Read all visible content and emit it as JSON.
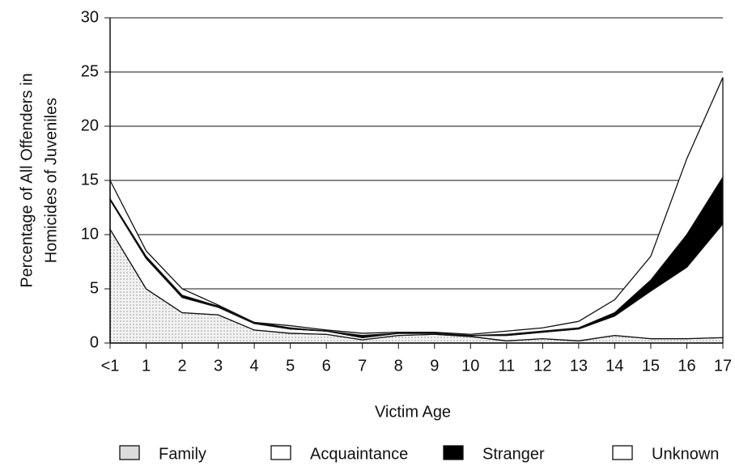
{
  "chart_data": {
    "type": "stacked_area",
    "ylabel": [
      "Percentage of All Offenders in",
      "Homicides of Juveniles"
    ],
    "xlabel": "Victim Age",
    "categories": [
      "<1",
      "1",
      "2",
      "3",
      "4",
      "5",
      "6",
      "7",
      "8",
      "9",
      "10",
      "11",
      "12",
      "13",
      "14",
      "15",
      "16",
      "17"
    ],
    "series": [
      {
        "name": "Family",
        "color": "#dcdcdc",
        "values": [
          10.5,
          5.0,
          2.8,
          2.6,
          1.2,
          0.9,
          0.8,
          0.3,
          0.7,
          0.8,
          0.6,
          0.2,
          0.4,
          0.2,
          0.7,
          0.4,
          0.4,
          0.5
        ]
      },
      {
        "name": "Acquaintance",
        "color": "#ffffff",
        "values": [
          2.7,
          2.8,
          1.4,
          0.7,
          0.6,
          0.4,
          0.3,
          0.2,
          0.2,
          0.1,
          0.1,
          0.5,
          0.6,
          1.1,
          1.8,
          4.4,
          6.6,
          10.5
        ]
      },
      {
        "name": "Stranger",
        "color": "#000000",
        "values": [
          0.1,
          0.2,
          0.2,
          0.1,
          0.1,
          0.1,
          0,
          0.2,
          0,
          0,
          0,
          0.1,
          0.1,
          0.1,
          0.3,
          1.0,
          3.0,
          4.3
        ]
      },
      {
        "name": "Unknown",
        "color": "#ffffff",
        "values": [
          1.7,
          0.5,
          0.6,
          0.1,
          0,
          0.2,
          0.1,
          0.2,
          0.1,
          0.1,
          0.1,
          0.3,
          0.3,
          0.6,
          1.2,
          2.2,
          7.0,
          9.2
        ]
      }
    ],
    "ylim": [
      0,
      30
    ],
    "yticks": [
      0,
      5,
      10,
      15,
      20,
      25,
      30
    ],
    "grid": true,
    "legend": "bottom"
  }
}
